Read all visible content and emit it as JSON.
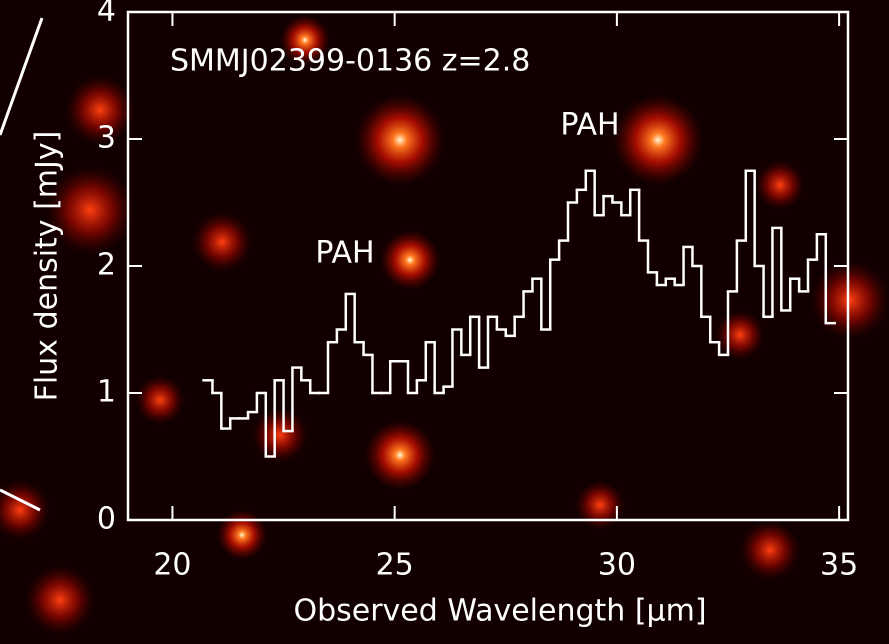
{
  "chart_data": {
    "type": "step",
    "title": "SMMJ02399-0136 z=2.8",
    "annotations": [
      "PAH",
      "PAH"
    ],
    "x_label": "Observed Wavelength [μm]",
    "y_label": "Flux density [mJy]",
    "x": [
      20.8,
      21.0,
      21.2,
      21.4,
      21.6,
      21.8,
      22.0,
      22.2,
      22.4,
      22.6,
      22.8,
      23.0,
      23.2,
      23.4,
      23.6,
      23.8,
      24.0,
      24.2,
      24.4,
      24.6,
      24.8,
      25.0,
      25.2,
      25.4,
      25.6,
      25.8,
      26.0,
      26.2,
      26.4,
      26.6,
      26.8,
      27.0,
      27.2,
      27.4,
      27.6,
      27.8,
      28.0,
      28.2,
      28.4,
      28.6,
      28.8,
      29.0,
      29.2,
      29.4,
      29.6,
      29.8,
      30.0,
      30.2,
      30.4,
      30.6,
      30.8,
      31.0,
      31.2,
      31.4,
      31.6,
      31.8,
      32.0,
      32.2,
      32.4,
      32.6,
      32.8,
      33.0,
      33.2,
      33.4,
      33.6,
      33.8,
      34.0,
      34.2,
      34.4,
      34.6,
      34.8
    ],
    "values": [
      1.1,
      1.0,
      0.72,
      0.8,
      0.8,
      0.85,
      1.0,
      0.5,
      1.1,
      0.7,
      1.2,
      1.1,
      1.0,
      1.0,
      1.4,
      1.5,
      1.78,
      1.4,
      1.3,
      1.0,
      1.0,
      1.25,
      1.25,
      1.0,
      1.1,
      1.4,
      1.0,
      1.05,
      1.5,
      1.3,
      1.6,
      1.2,
      1.6,
      1.5,
      1.45,
      1.6,
      1.8,
      1.9,
      1.5,
      2.05,
      2.2,
      2.5,
      2.6,
      2.75,
      2.4,
      2.55,
      2.5,
      2.4,
      2.6,
      2.2,
      1.95,
      1.85,
      1.9,
      1.85,
      2.15,
      2.0,
      1.6,
      1.4,
      1.3,
      1.8,
      2.2,
      2.75,
      2.0,
      1.6,
      2.3,
      1.65,
      1.9,
      1.8,
      2.05,
      2.25,
      1.55
    ],
    "color": "#ffffff",
    "xlim": [
      19.0,
      35.2
    ],
    "ylim": [
      0,
      4
    ],
    "xticks": [
      20,
      25,
      30,
      35
    ],
    "yticks": [
      0,
      1,
      2,
      3,
      4
    ]
  }
}
